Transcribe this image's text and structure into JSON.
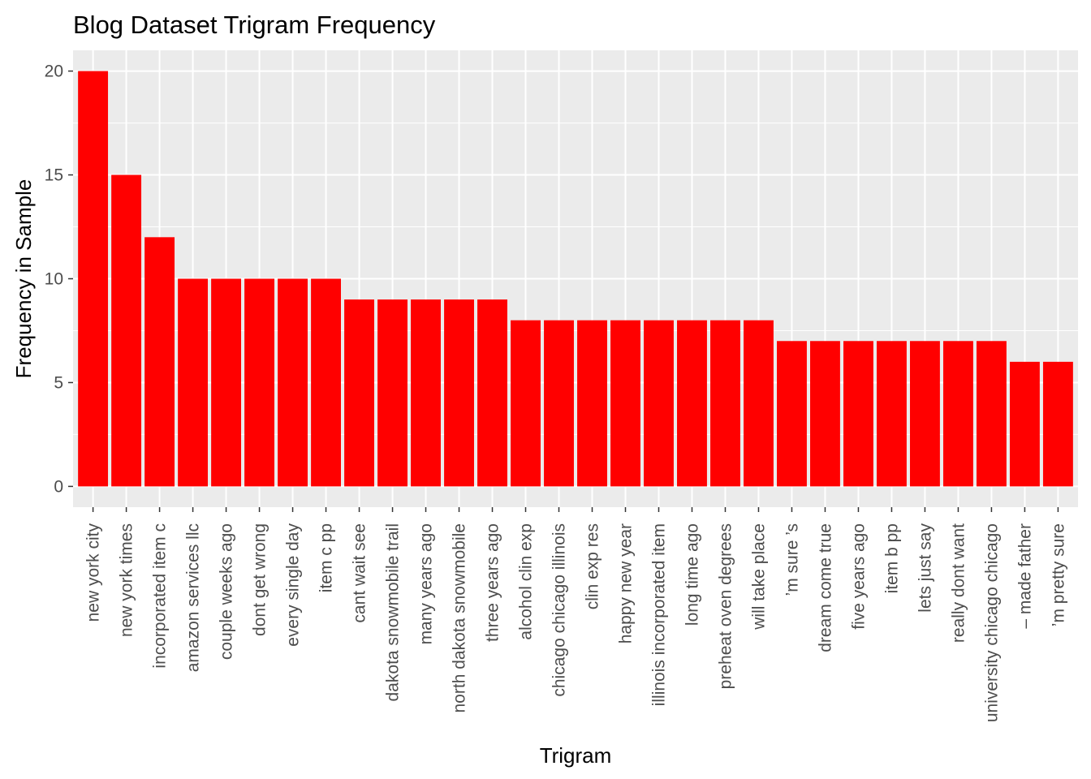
{
  "chart_data": {
    "type": "bar",
    "title": "Blog Dataset Trigram Frequency",
    "xlabel": "Trigram",
    "ylabel": "Frequency in Sample",
    "ylim": [
      -1,
      21
    ],
    "yticks": [
      0,
      5,
      10,
      15,
      20
    ],
    "bar_color": "#ff0000",
    "panel_color": "#ebebeb",
    "grid": true,
    "categories": [
      "new york city",
      "new york times",
      "incorporated item c",
      "amazon services llc",
      "couple weeks ago",
      "dont get wrong",
      "every single day",
      "item c pp",
      "cant wait see",
      "dakota snowmobile trail",
      "many years ago",
      "north dakota snowmobile",
      "three years ago",
      "alcohol clin exp",
      "chicago chicago illinois",
      "clin exp res",
      "happy new year",
      "illinois incorporated item",
      "long time ago",
      "preheat oven degrees",
      "will take place",
      "’m sure ’s",
      "dream come true",
      "five years ago",
      "item b pp",
      "lets just say",
      "really dont want",
      "university chicago chicago",
      "– made father",
      "’m pretty sure"
    ],
    "values": [
      20,
      15,
      12,
      10,
      10,
      10,
      10,
      10,
      9,
      9,
      9,
      9,
      9,
      8,
      8,
      8,
      8,
      8,
      8,
      8,
      8,
      7,
      7,
      7,
      7,
      7,
      7,
      7,
      6,
      6
    ]
  }
}
